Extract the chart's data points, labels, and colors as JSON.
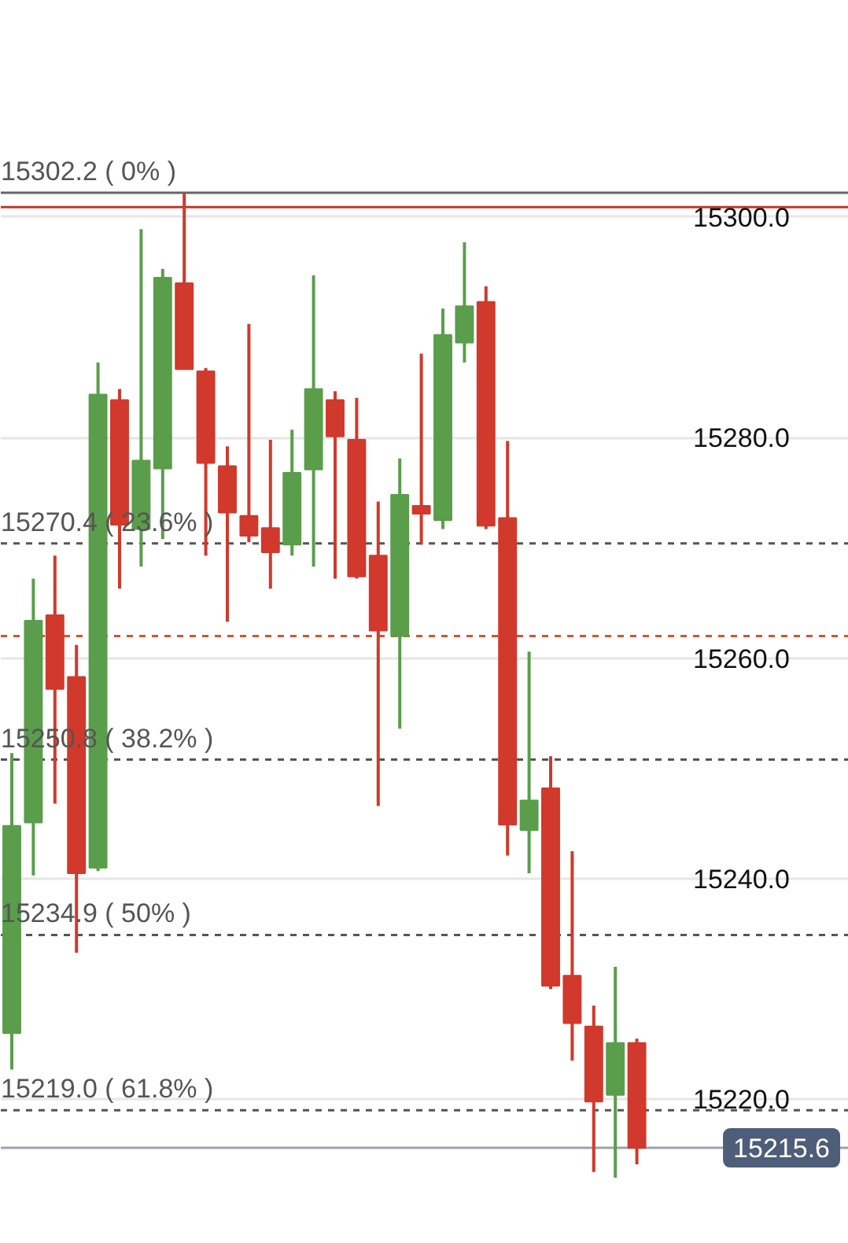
{
  "chart_data": {
    "type": "candlestick",
    "categories": [
      null,
      null,
      null,
      null,
      null,
      null,
      null,
      null,
      null,
      null,
      null,
      null,
      null,
      null,
      null,
      null,
      null,
      null,
      null,
      null,
      null,
      null,
      null,
      null,
      null,
      null,
      null,
      null,
      null,
      null
    ],
    "ohlc": [
      [
        15226.0,
        15251.4,
        15222.7,
        15244.8
      ],
      [
        15245.1,
        15267.2,
        15240.3,
        15263.4
      ],
      [
        15263.9,
        15269.3,
        15246.8,
        15257.2
      ],
      [
        15258.3,
        15261.2,
        15233.3,
        15240.5
      ],
      [
        15241.0,
        15286.8,
        15240.7,
        15283.9
      ],
      [
        15283.4,
        15284.4,
        15266.3,
        15272.1
      ],
      [
        15271.7,
        15298.9,
        15268.3,
        15277.9
      ],
      [
        15277.2,
        15295.3,
        15270.8,
        15294.5
      ],
      [
        15294.0,
        15302.2,
        15286.2,
        15286.2
      ],
      [
        15286.0,
        15286.3,
        15269.3,
        15277.7
      ],
      [
        15277.4,
        15279.2,
        15263.3,
        15273.2
      ],
      [
        15272.9,
        15290.3,
        15270.5,
        15271.1
      ],
      [
        15271.8,
        15279.8,
        15266.3,
        15269.6
      ],
      [
        15270.3,
        15280.7,
        15269.3,
        15276.8
      ],
      [
        15277.1,
        15294.7,
        15268.3,
        15284.4
      ],
      [
        15283.4,
        15284.2,
        15267.2,
        15280.1
      ],
      [
        15279.8,
        15283.6,
        15267.2,
        15267.4
      ],
      [
        15269.3,
        15274.2,
        15246.6,
        15262.5
      ],
      [
        15262.0,
        15278.1,
        15253.6,
        15274.8
      ],
      [
        15273.8,
        15287.6,
        15270.3,
        15273.1
      ],
      [
        15272.5,
        15291.7,
        15271.7,
        15289.3
      ],
      [
        15288.6,
        15297.7,
        15286.8,
        15291.9
      ],
      [
        15292.3,
        15293.7,
        15271.7,
        15272.0
      ],
      [
        15272.7,
        15279.7,
        15242.1,
        15244.9
      ],
      [
        15244.4,
        15260.6,
        15240.5,
        15247.1
      ],
      [
        15248.2,
        15251.1,
        15230.0,
        15230.3
      ],
      [
        15231.2,
        15242.5,
        15223.5,
        15226.9
      ],
      [
        15226.6,
        15228.5,
        15213.4,
        15219.8
      ],
      [
        15220.4,
        15232.0,
        15212.9,
        15225.1
      ],
      [
        15225.1,
        15225.5,
        15214.1,
        15215.6
      ]
    ],
    "colors": [
      "#5a9e4b",
      "#5a9e4b",
      "#d0392b",
      "#d0392b",
      "#5a9e4b",
      "#d0392b",
      "#5a9e4b",
      "#5a9e4b",
      "#d0392b",
      "#d0392b",
      "#d0392b",
      "#d0392b",
      "#d0392b",
      "#5a9e4b",
      "#5a9e4b",
      "#d0392b",
      "#d0392b",
      "#d0392b",
      "#5a9e4b",
      "#d0392b",
      "#5a9e4b",
      "#5a9e4b",
      "#d0392b",
      "#d0392b",
      "#5a9e4b",
      "#d0392b",
      "#d0392b",
      "#d0392b",
      "#5a9e4b",
      "#d0392b"
    ],
    "ylim": [
      15206.9,
      15319.6
    ],
    "yticks": [
      {
        "value": 15220,
        "label": "15220.0"
      },
      {
        "value": 15240,
        "label": "15240.0"
      },
      {
        "value": 15260,
        "label": "15260.0"
      },
      {
        "value": 15280,
        "label": "15280.0"
      },
      {
        "value": 15300,
        "label": "15300.0"
      }
    ],
    "grid": "y",
    "tick_labels": "y",
    "ref_lines": [
      {
        "axis": "y",
        "value": 15302.2,
        "label": "15302.2 ( 0% )",
        "color": "#666666",
        "line_style": "solid"
      },
      {
        "axis": "y",
        "value": 15300.9,
        "color": "#c0392b",
        "line_style": "solid"
      },
      {
        "axis": "y",
        "value": 15270.4,
        "label": "15270.4 ( 23.6% )",
        "color": "#555555",
        "line_style": "dashed"
      },
      {
        "axis": "y",
        "value": 15262.0,
        "color": "#d9532c",
        "line_style": "dashed"
      },
      {
        "axis": "y",
        "value": 15250.8,
        "label": "15250.8 ( 38.2% )",
        "color": "#555555",
        "line_style": "dashed"
      },
      {
        "axis": "y",
        "value": 15234.9,
        "label": "15234.9 ( 50% )",
        "color": "#555555",
        "line_style": "dashed"
      },
      {
        "axis": "y",
        "value": 15219.0,
        "label": "15219.0 ( 61.8% )",
        "color": "#555555",
        "line_style": "dashed"
      },
      {
        "axis": "y",
        "value": 15215.6,
        "color": "#9aa3b0",
        "line_style": "solid"
      }
    ],
    "annotations": [
      {
        "text": "15215.6",
        "y": 15215.6
      }
    ]
  }
}
